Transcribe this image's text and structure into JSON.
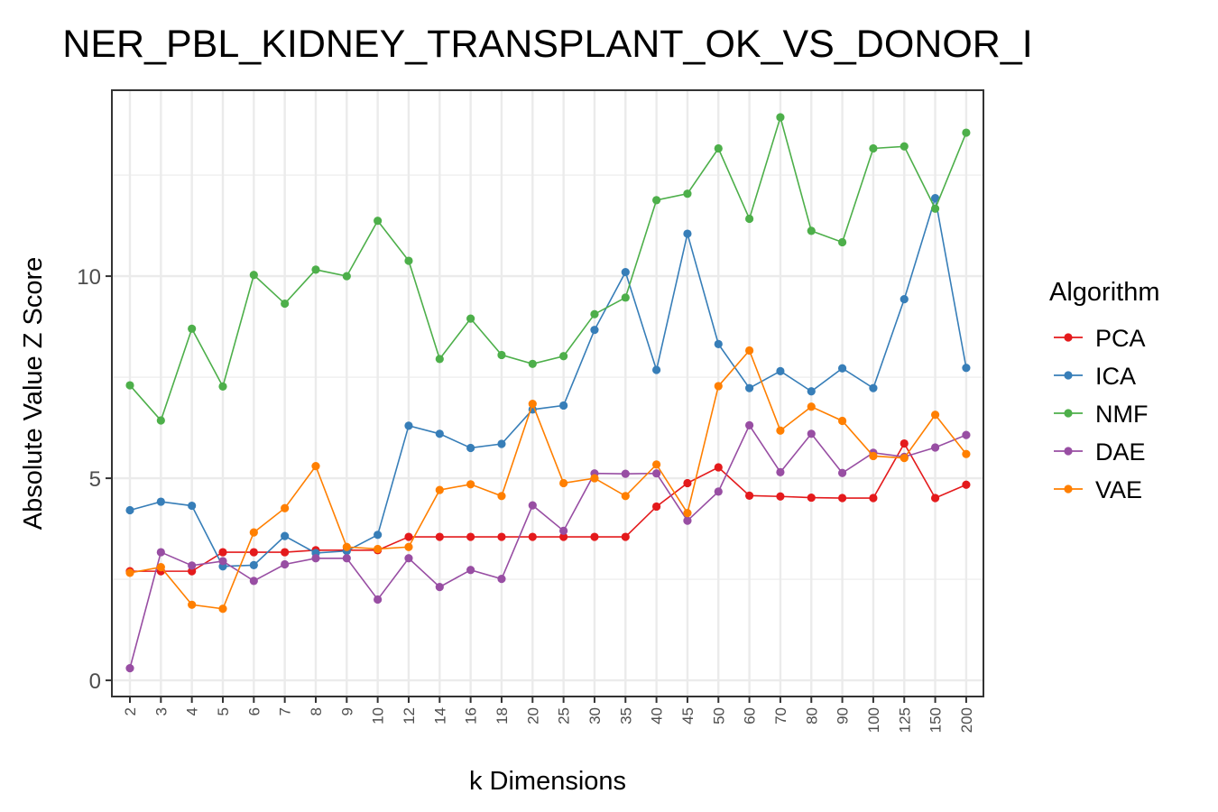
{
  "chart_data": {
    "type": "line",
    "title": "NER_PBL_KIDNEY_TRANSPLANT_OK_VS_DONOR_I",
    "xlabel": "k Dimensions",
    "ylabel": "Absolute Value Z Score",
    "categories": [
      "2",
      "3",
      "4",
      "5",
      "6",
      "7",
      "8",
      "9",
      "10",
      "12",
      "14",
      "16",
      "18",
      "20",
      "25",
      "30",
      "35",
      "40",
      "45",
      "50",
      "60",
      "70",
      "80",
      "90",
      "100",
      "125",
      "150",
      "200"
    ],
    "ylim": [
      -0.4,
      14.6
    ],
    "yticks": [
      0,
      5,
      10
    ],
    "grid": true,
    "legend": {
      "title": "Algorithm",
      "position": "right"
    },
    "series": [
      {
        "name": "PCA",
        "color": "#E41A1C",
        "values": [
          2.7,
          2.7,
          2.7,
          3.17,
          3.17,
          3.17,
          3.22,
          3.22,
          3.22,
          3.55,
          3.55,
          3.55,
          3.55,
          3.55,
          3.55,
          3.55,
          3.55,
          4.3,
          4.88,
          5.27,
          4.57,
          4.55,
          4.52,
          4.51,
          4.51,
          5.86,
          4.51,
          4.84
        ]
      },
      {
        "name": "ICA",
        "color": "#377EB8",
        "values": [
          4.21,
          4.42,
          4.32,
          2.82,
          2.85,
          3.57,
          3.15,
          3.2,
          3.6,
          6.3,
          6.1,
          5.75,
          5.85,
          6.7,
          6.8,
          8.67,
          10.1,
          7.68,
          11.05,
          8.32,
          7.23,
          7.65,
          7.15,
          7.72,
          7.23,
          9.43,
          11.93,
          7.73
        ]
      },
      {
        "name": "NMF",
        "color": "#4DAF4A",
        "values": [
          7.3,
          6.43,
          8.7,
          7.27,
          10.03,
          9.32,
          10.16,
          10.0,
          11.37,
          10.38,
          7.95,
          8.95,
          8.05,
          7.83,
          8.02,
          9.06,
          9.47,
          11.88,
          12.04,
          13.16,
          11.42,
          13.93,
          11.12,
          10.84,
          13.16,
          13.21,
          11.67,
          13.55
        ]
      },
      {
        "name": "DAE",
        "color": "#984EA3",
        "values": [
          0.3,
          3.17,
          2.84,
          2.95,
          2.46,
          2.87,
          3.02,
          3.02,
          2.0,
          3.02,
          2.31,
          2.73,
          2.51,
          4.33,
          3.7,
          5.12,
          5.11,
          5.12,
          3.95,
          4.67,
          6.31,
          5.15,
          6.1,
          5.13,
          5.63,
          5.53,
          5.76,
          6.07
        ]
      },
      {
        "name": "VAE",
        "color": "#FF7F00",
        "values": [
          2.66,
          2.8,
          1.87,
          1.77,
          3.66,
          4.26,
          5.3,
          3.3,
          3.25,
          3.3,
          4.71,
          4.85,
          4.56,
          6.84,
          4.88,
          5.0,
          4.56,
          5.34,
          4.14,
          7.28,
          8.16,
          6.18,
          6.77,
          6.42,
          5.55,
          5.5,
          6.57,
          5.6
        ]
      }
    ]
  }
}
